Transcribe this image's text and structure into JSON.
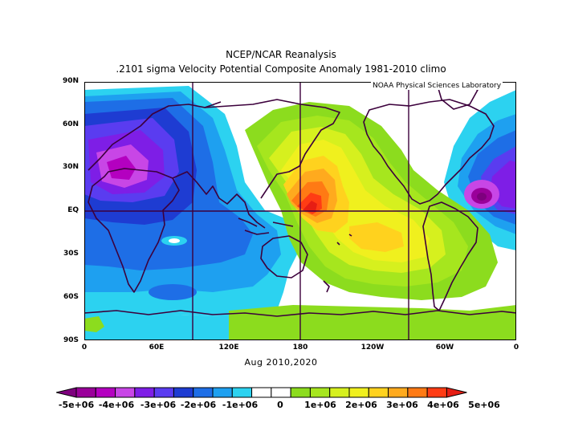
{
  "titles": {
    "line1": "NCEP/NCAR Reanalysis",
    "line2": ".2101 sigma Velocity Potential  Composite Anomaly 1981-2010 climo"
  },
  "credit": "NOAA Physical Sciences Laboratory",
  "period": "Aug 2010,2020",
  "lat_labels": [
    "90N",
    "60N",
    "30N",
    "EQ",
    "30S",
    "60S",
    "90S"
  ],
  "lon_labels": [
    "0",
    "60E",
    "120E",
    "180",
    "120W",
    "60W",
    "0"
  ],
  "colorbar": {
    "labels": [
      "-5e+06",
      "-4e+06",
      "-3e+06",
      "-2e+06",
      "-1e+06",
      "0",
      "1e+06",
      "2e+06",
      "3e+06",
      "4e+06",
      "5e+06"
    ],
    "colors": [
      "#7e007e",
      "#9a009a",
      "#b400c0",
      "#c846e6",
      "#7e1ee6",
      "#5a3cf0",
      "#1e3cd2",
      "#1e6ee6",
      "#1ea0f0",
      "#2cd2f0",
      "#ffffff",
      "#ffffff",
      "#8cdc1e",
      "#a6e61e",
      "#d6f01e",
      "#f0f01e",
      "#ffd21e",
      "#ffaa1e",
      "#ff7a14",
      "#ff3c14",
      "#e61e14"
    ]
  },
  "map_colors": {
    "coast": "#3c003c",
    "grid": "#3c003c"
  }
}
